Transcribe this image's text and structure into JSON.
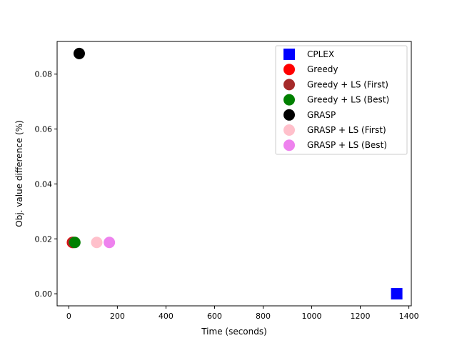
{
  "chart_data": {
    "type": "scatter",
    "title": "",
    "xlabel": "Time (seconds)",
    "ylabel": "Obj. value difference (%)",
    "xlim": [
      -48,
      1410
    ],
    "ylim": [
      -0.0044,
      0.0919
    ],
    "xticks": [
      0,
      200,
      400,
      600,
      800,
      1000,
      1200,
      1400
    ],
    "yticks": [
      0.0,
      0.02,
      0.04,
      0.06,
      0.08
    ],
    "xtick_labels": [
      "0",
      "200",
      "400",
      "600",
      "800",
      "1000",
      "1200",
      "1400"
    ],
    "ytick_labels": [
      "0.00",
      "0.02",
      "0.04",
      "0.06",
      "0.08"
    ],
    "grid": false,
    "legend_position": "top-right",
    "series": [
      {
        "name": "CPLEX",
        "marker": "square",
        "color": "#0000ff",
        "points": [
          [
            1350,
            0.0
          ]
        ]
      },
      {
        "name": "Greedy",
        "marker": "circle",
        "color": "#ff0000",
        "points": [
          [
            15,
            0.0187
          ]
        ]
      },
      {
        "name": "Greedy + LS (First)",
        "marker": "circle",
        "color": "#a52a2a",
        "points": [
          [
            18,
            0.0187
          ]
        ]
      },
      {
        "name": "Greedy + LS (Best)",
        "marker": "circle",
        "color": "#008000",
        "points": [
          [
            25,
            0.0187
          ]
        ]
      },
      {
        "name": "GRASP",
        "marker": "circle",
        "color": "#000000",
        "points": [
          [
            43,
            0.0875
          ]
        ]
      },
      {
        "name": "GRASP + LS (First)",
        "marker": "circle",
        "color": "#ffc0cb",
        "points": [
          [
            115,
            0.0187
          ]
        ]
      },
      {
        "name": "GRASP + LS (Best)",
        "marker": "circle",
        "color": "#ee82ee",
        "points": [
          [
            167,
            0.0187
          ]
        ]
      }
    ]
  }
}
